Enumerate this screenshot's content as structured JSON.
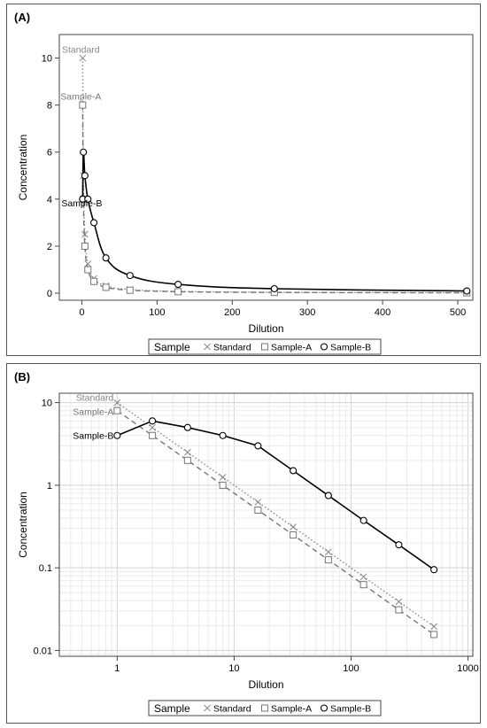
{
  "chart_data": [
    {
      "panel": "(A)",
      "type": "line",
      "xlabel": "Dilution",
      "ylabel": "Concentration",
      "xlim": [
        -30,
        520
      ],
      "ylim": [
        -0.3,
        11
      ],
      "x_scale": "linear",
      "y_scale": "linear",
      "xticks": [
        0,
        100,
        200,
        300,
        400,
        500
      ],
      "yticks": [
        0,
        2,
        4,
        6,
        8,
        10
      ],
      "grid": false,
      "legend_title": "Sample",
      "legend_position": "bottom",
      "series": [
        {
          "name": "Standard",
          "marker": "x",
          "line_style": "dotted",
          "color": "#888888",
          "x": [
            1,
            2,
            4,
            8,
            16,
            32,
            64,
            128,
            256,
            512
          ],
          "y": [
            10,
            5,
            2.5,
            1.25,
            0.625,
            0.3125,
            0.156,
            0.078,
            0.039,
            0.0195
          ]
        },
        {
          "name": "Sample-A",
          "marker": "square",
          "line_style": "dashed",
          "color": "#777777",
          "x": [
            1,
            2,
            4,
            8,
            16,
            32,
            64,
            128,
            256,
            512
          ],
          "y": [
            8,
            4,
            2,
            1,
            0.5,
            0.25,
            0.125,
            0.0625,
            0.031,
            0.0156
          ]
        },
        {
          "name": "Sample-B",
          "marker": "circle",
          "line_style": "solid",
          "color": "#000000",
          "x": [
            1,
            2,
            4,
            8,
            16,
            32,
            64,
            128,
            256,
            512
          ],
          "y": [
            4,
            6,
            5,
            4,
            3,
            1.5,
            0.75,
            0.375,
            0.19,
            0.095
          ]
        }
      ]
    },
    {
      "panel": "(B)",
      "type": "line",
      "xlabel": "Dilution",
      "ylabel": "Concentration",
      "xlim": [
        0.32,
        1100
      ],
      "ylim": [
        0.0085,
        13
      ],
      "x_scale": "log",
      "y_scale": "log",
      "xticks": [
        1,
        10,
        100,
        1000
      ],
      "xtick_labels": [
        "1",
        "10",
        "100",
        "1000"
      ],
      "yticks": [
        0.01,
        0.1,
        1,
        10
      ],
      "ytick_labels": [
        "0.01",
        "0.1",
        "1",
        "10"
      ],
      "grid": true,
      "legend_title": "Sample",
      "legend_position": "bottom",
      "series": [
        {
          "name": "Standard",
          "marker": "x",
          "line_style": "dotted",
          "color": "#888888",
          "x": [
            1,
            2,
            4,
            8,
            16,
            32,
            64,
            128,
            256,
            512
          ],
          "y": [
            10,
            5,
            2.5,
            1.25,
            0.625,
            0.3125,
            0.156,
            0.078,
            0.039,
            0.0195
          ]
        },
        {
          "name": "Sample-A",
          "marker": "square",
          "line_style": "dashed",
          "color": "#777777",
          "x": [
            1,
            2,
            4,
            8,
            16,
            32,
            64,
            128,
            256,
            512
          ],
          "y": [
            8,
            4,
            2,
            1,
            0.5,
            0.25,
            0.125,
            0.0625,
            0.031,
            0.0156
          ]
        },
        {
          "name": "Sample-B",
          "marker": "circle",
          "line_style": "solid",
          "color": "#000000",
          "x": [
            1,
            2,
            4,
            8,
            16,
            32,
            64,
            128,
            256,
            512
          ],
          "y": [
            4,
            6,
            5,
            4,
            3,
            1.5,
            0.75,
            0.375,
            0.19,
            0.095
          ]
        }
      ]
    }
  ]
}
